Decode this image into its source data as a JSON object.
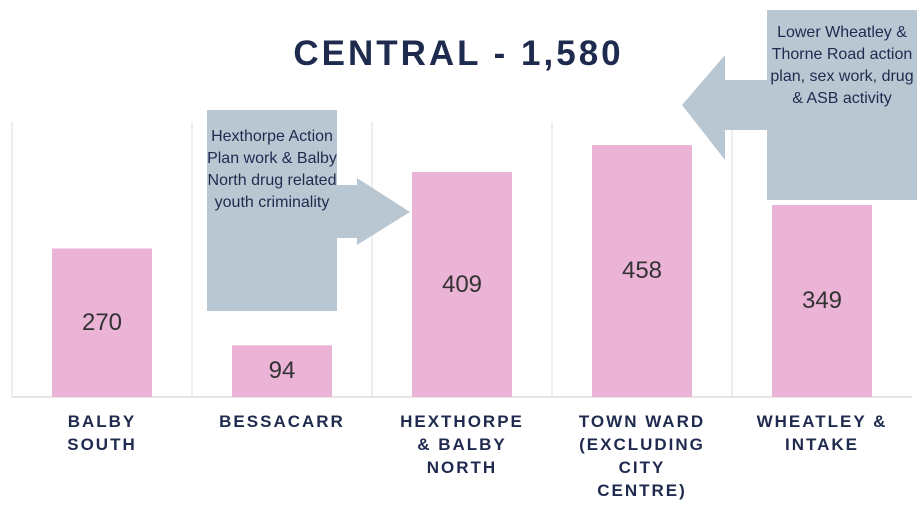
{
  "chart_data": {
    "type": "bar",
    "title": "CENTRAL - 1,580",
    "categories": [
      "BALBY\nSOUTH",
      "BESSACARR",
      "HEXTHORPE\n& BALBY\nNORTH",
      "TOWN WARD\n(EXCLUDING\nCITY\nCENTRE)",
      "WHEATLEY &\nINTAKE"
    ],
    "values": [
      270,
      94,
      409,
      458,
      349
    ],
    "color": "#ebb3d6",
    "ylim": [
      0,
      500
    ],
    "annotations": [
      "Hexthorpe Action Plan work & Balby North drug related youth criminality",
      "Lower Wheatley & Thorne Road action plan, sex work, drug & ASB activity"
    ]
  }
}
